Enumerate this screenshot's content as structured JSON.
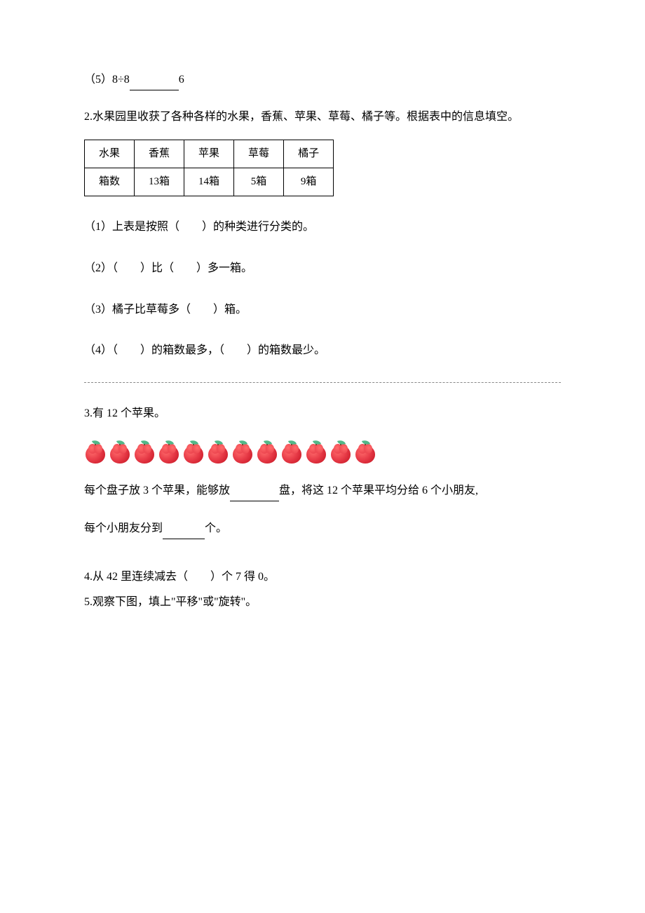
{
  "q1_5": {
    "prefix": "（5）8÷8",
    "suffix": "6"
  },
  "q2": {
    "intro": "2.水果园里收获了各种各样的水果，香蕉、苹果、草莓、橘子等。根据表中的信息填空。",
    "table": {
      "columns": [
        "水果",
        "香蕉",
        "苹果",
        "草莓",
        "橘子"
      ],
      "rows": [
        [
          "箱数",
          "13箱",
          "14箱",
          "5箱",
          "9箱"
        ]
      ]
    },
    "sub1": "（1）上表是按照（　　）的种类进行分类的。",
    "sub2": "（2）（　　）比（　　）多一箱。",
    "sub3": "（3）橘子比草莓多（　　）箱。",
    "sub4": "（4）（　　）的箱数最多，（　　）的箱数最少。"
  },
  "q3": {
    "title": "3.有 12 个苹果。",
    "apple_count": 12,
    "line1_a": "每个盘子放 3 个苹果，能够放",
    "line1_b": "盘，将这 12 个苹果平均分给 6 个小朋友,",
    "line2_a": "每个小朋友分到",
    "line2_b": "个。",
    "apple_colors": {
      "body": "#e63946",
      "highlight": "#ff6b6b",
      "leaf": "#52b788",
      "stem": "#6b4423"
    }
  },
  "q4": "4.从 42 里连续减去（　　）个 7 得 0。",
  "q5": "5.观察下图，填上\"平移\"或\"旋转\"。"
}
